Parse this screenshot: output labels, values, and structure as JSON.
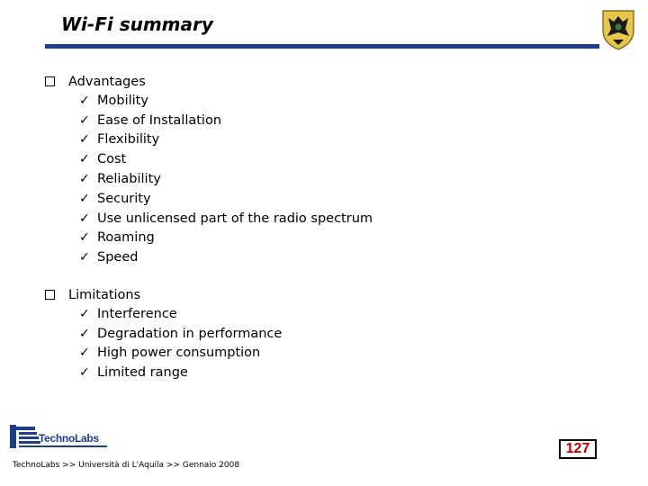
{
  "slide": {
    "title": "Wi-Fi summary",
    "colors": {
      "rule": "#1f3c8c",
      "page_number": "#c00000"
    }
  },
  "advantages": {
    "heading": "Advantages",
    "items": [
      "Mobility",
      "Ease of Installation",
      "Flexibility",
      "Cost",
      "Reliability",
      "Security",
      "Use unlicensed part of the radio spectrum",
      "Roaming",
      "Speed"
    ]
  },
  "limitations": {
    "heading": "Limitations",
    "items": [
      "Interference",
      "Degradation in performance",
      "High power consumption",
      "Limited range"
    ]
  },
  "footer": {
    "logo_text": "TechnoLabs",
    "text": "TechnoLabs >> Università di L'Aquila >> Gennaio 2008",
    "page_number": "127"
  },
  "icons": {
    "bullet": "square-bullet-icon",
    "item": "checkmark-icon",
    "crest": "university-crest-icon",
    "logo": "technolabs-logo-icon"
  }
}
